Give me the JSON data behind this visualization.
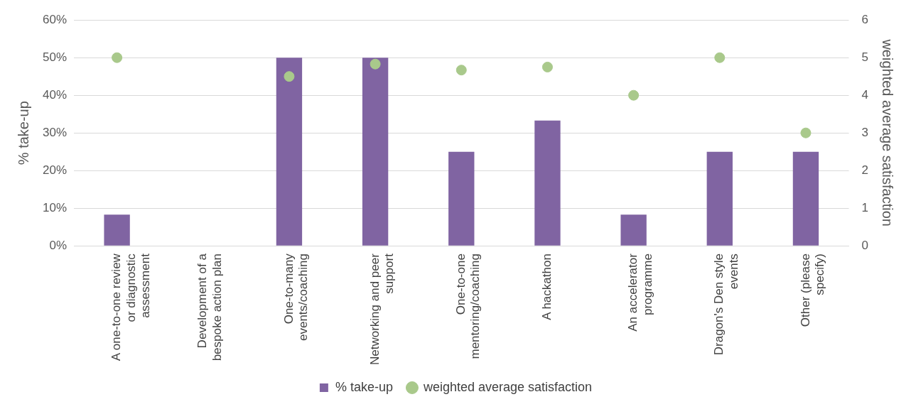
{
  "chart_data": {
    "type": "bar",
    "xlabel": null,
    "ylabel": "% take-up",
    "y2label": "weighted average satisfaction",
    "categories": [
      "A one-to-one review or diagnostic assessment",
      "Development of a bespoke action plan",
      "One-to-many events/coaching",
      "Networking and peer support",
      "One-to-one mentoring/coaching",
      "A hackathon",
      "An accelerator programme",
      "Dragon's Den style events",
      "Other (please specify)"
    ],
    "series": [
      {
        "name": "% take-up",
        "color": "#8064a2",
        "values": [
          8.3,
          0,
          50,
          50,
          25,
          33.3,
          8.3,
          25,
          25
        ]
      },
      {
        "name": "weighted average satisfaction",
        "type": "scatter",
        "axis": "y2",
        "color": "#a9c98b",
        "values": [
          5,
          null,
          4.5,
          4.83,
          4.67,
          4.75,
          4,
          5,
          3
        ]
      }
    ],
    "ylim": [
      0,
      60
    ],
    "yticks": [
      {
        "value": 0,
        "label": "0%"
      },
      {
        "value": 10,
        "label": "10%"
      },
      {
        "value": 20,
        "label": "20%"
      },
      {
        "value": 30,
        "label": "30%"
      },
      {
        "value": 40,
        "label": "40%"
      },
      {
        "value": 50,
        "label": "50%"
      },
      {
        "value": 60,
        "label": "60%"
      }
    ],
    "y2lim": [
      0,
      6
    ],
    "y2ticks": [
      0,
      1,
      2,
      3,
      4,
      5,
      6
    ],
    "grid": "y",
    "legend": "bottom",
    "marker": "circle"
  }
}
